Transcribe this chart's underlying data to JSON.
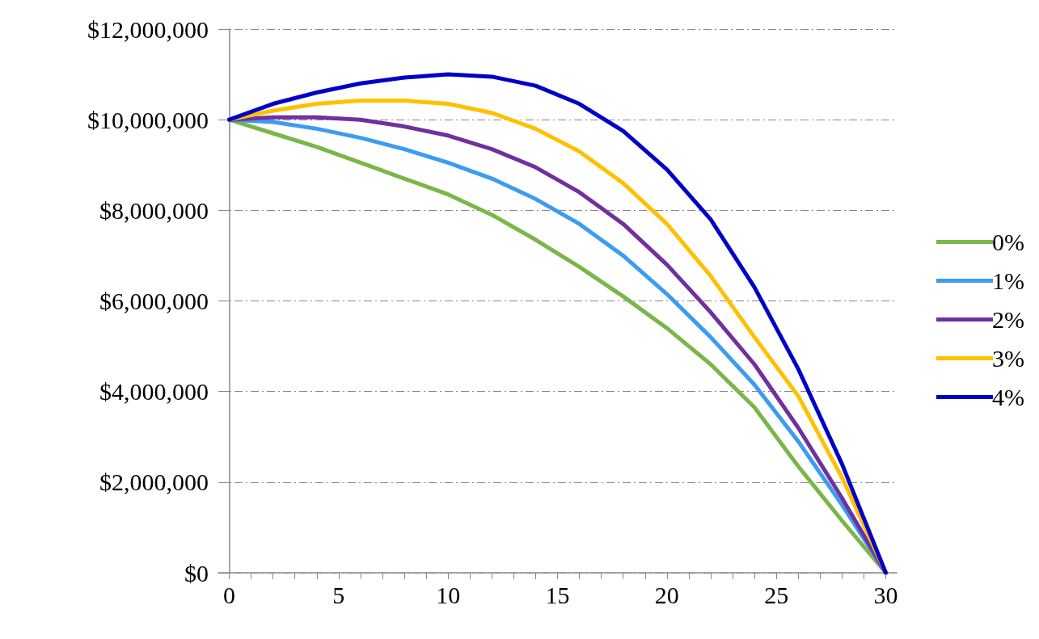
{
  "chart_data": {
    "type": "line",
    "x": [
      0,
      2,
      4,
      6,
      8,
      10,
      12,
      14,
      16,
      18,
      20,
      22,
      24,
      26,
      28,
      30
    ],
    "xlim": [
      -0.5,
      30.5
    ],
    "xticks": [
      0,
      {
        "value": 1,
        "label": null
      },
      {
        "value": 2,
        "label": null
      },
      {
        "value": 3,
        "label": null
      },
      {
        "value": 4,
        "label": null
      },
      5,
      {
        "value": 6,
        "label": null
      },
      {
        "value": 7,
        "label": null
      },
      {
        "value": 8,
        "label": null
      },
      {
        "value": 9,
        "label": null
      },
      10,
      {
        "value": 11,
        "label": null
      },
      {
        "value": 12,
        "label": null
      },
      {
        "value": 13,
        "label": null
      },
      {
        "value": 14,
        "label": null
      },
      15,
      {
        "value": 16,
        "label": null
      },
      {
        "value": 17,
        "label": null
      },
      {
        "value": 18,
        "label": null
      },
      {
        "value": 19,
        "label": null
      },
      20,
      {
        "value": 21,
        "label": null
      },
      {
        "value": 22,
        "label": null
      },
      {
        "value": 23,
        "label": null
      },
      {
        "value": 24,
        "label": null
      },
      25,
      {
        "value": 26,
        "label": null
      },
      {
        "value": 27,
        "label": null
      },
      {
        "value": 28,
        "label": null
      },
      {
        "value": 29,
        "label": null
      },
      30
    ],
    "ylim": [
      0,
      12000000
    ],
    "yticks": [
      {
        "value": 0,
        "label": "$0"
      },
      {
        "value": 2000000,
        "label": "$2,000,000"
      },
      {
        "value": 4000000,
        "label": "$4,000,000"
      },
      {
        "value": 6000000,
        "label": "$6,000,000"
      },
      {
        "value": 8000000,
        "label": "$8,000,000"
      },
      {
        "value": 10000000,
        "label": "$10,000,000"
      },
      {
        "value": 12000000,
        "label": "$12,000,000"
      }
    ],
    "grid": "y",
    "legend": "right",
    "marker": "none",
    "series": [
      {
        "name": "0%",
        "color": "#7ab648",
        "values": [
          10000000,
          9700000,
          9400000,
          9050000,
          8700000,
          8350000,
          7900000,
          7350000,
          6750000,
          6100000,
          5400000,
          4600000,
          3650000,
          2350000,
          1150000,
          0
        ]
      },
      {
        "name": "1%",
        "color": "#3c9cf0",
        "values": [
          10000000,
          9950000,
          9800000,
          9600000,
          9350000,
          9050000,
          8700000,
          8250000,
          7700000,
          7000000,
          6150000,
          5200000,
          4150000,
          2900000,
          1500000,
          0
        ]
      },
      {
        "name": "2%",
        "color": "#7030a0",
        "values": [
          10000000,
          10050000,
          10050000,
          10000000,
          9850000,
          9650000,
          9350000,
          8950000,
          8400000,
          7700000,
          6800000,
          5750000,
          4600000,
          3200000,
          1650000,
          0
        ]
      },
      {
        "name": "3%",
        "color": "#ffc000",
        "values": [
          10000000,
          10200000,
          10350000,
          10420000,
          10420000,
          10350000,
          10150000,
          9800000,
          9300000,
          8600000,
          7700000,
          6550000,
          5200000,
          3900000,
          2100000,
          0
        ]
      },
      {
        "name": "4%",
        "color": "#0000c8",
        "values": [
          10000000,
          10350000,
          10600000,
          10800000,
          10930000,
          11000000,
          10950000,
          10750000,
          10350000,
          9750000,
          8900000,
          7800000,
          6300000,
          4500000,
          2400000,
          0
        ]
      }
    ]
  }
}
